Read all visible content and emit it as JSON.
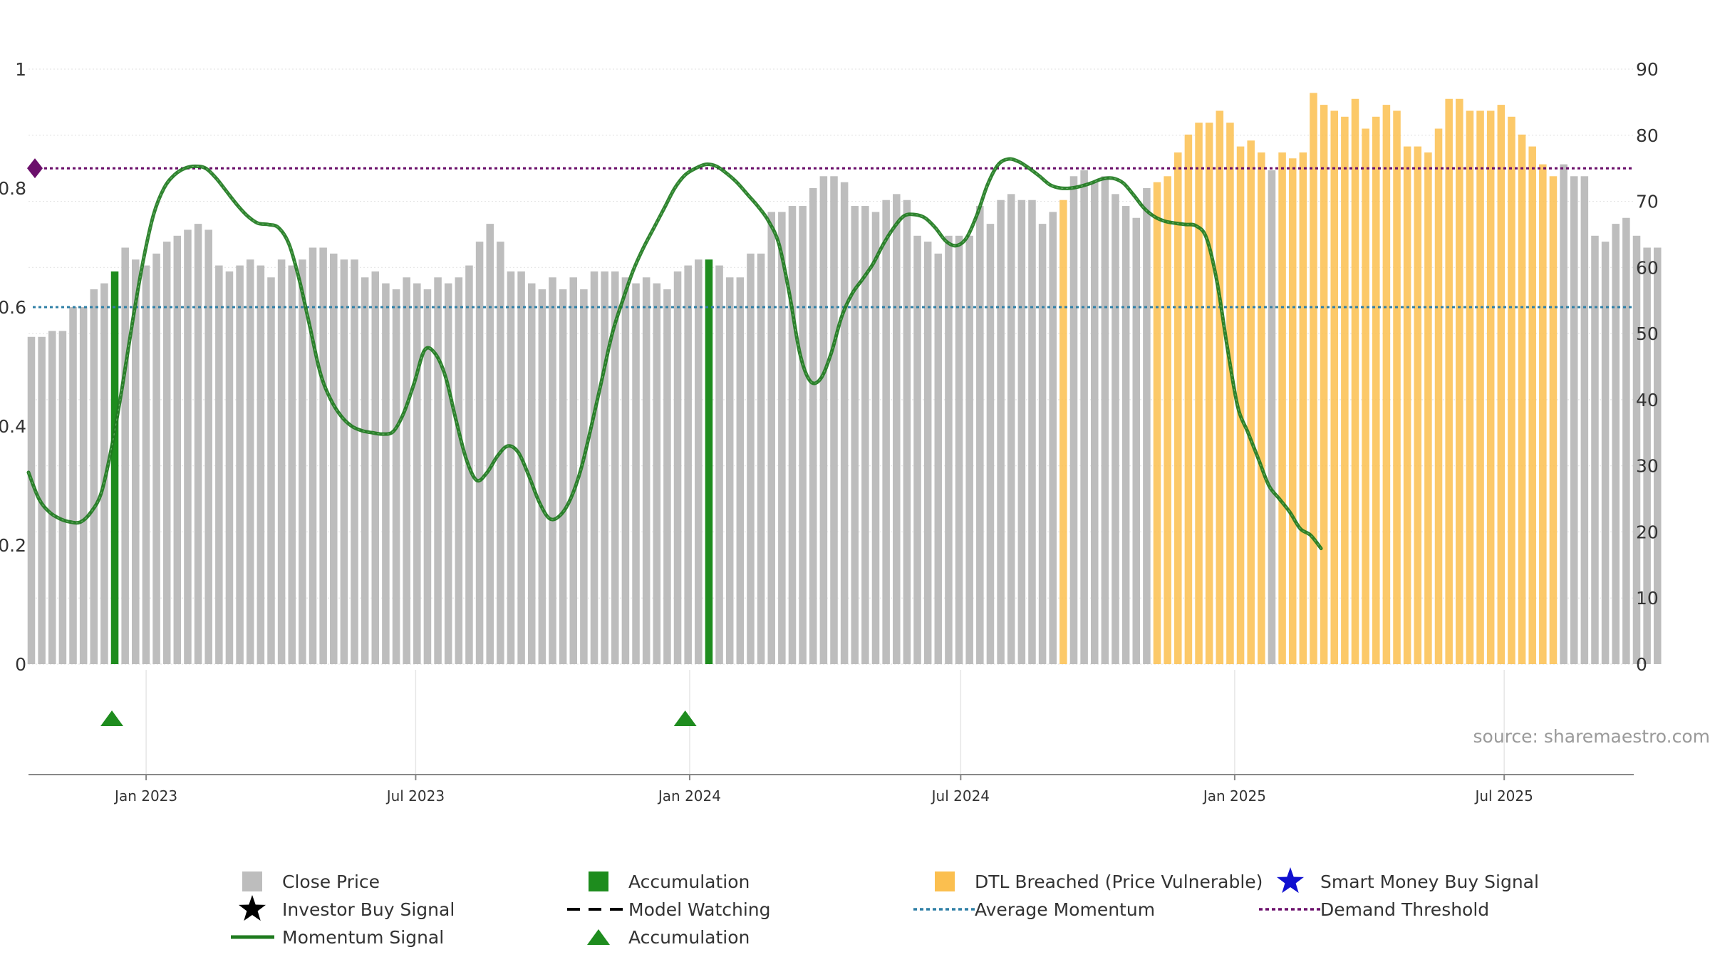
{
  "chart_data": {
    "type": "bar",
    "colors": {
      "close_price": "#bdbdbd",
      "accumulation": "#1e8c1e",
      "dtl_breached": "#fbbf4f",
      "momentum": "#1e7a1e",
      "average_momentum": "#2f7fa6",
      "demand_threshold": "#6b0f6b",
      "smart_money_star": "#1010d0",
      "investor_star": "#000000",
      "model_watching": "#000000",
      "grid": "#e6e6e6",
      "axis": "#888888"
    },
    "left_axis": {
      "ylim": [
        0,
        1
      ],
      "ticks": [
        "0",
        "0.2",
        "0.4",
        "0.6",
        "0.8",
        "1"
      ]
    },
    "right_axis": {
      "ylim": [
        0,
        90
      ],
      "ticks": [
        "0",
        "10",
        "20",
        "30",
        "40",
        "50",
        "60",
        "70",
        "80",
        "90"
      ]
    },
    "x_axis": {
      "start": "2022-10-14",
      "end": "2025-09-26",
      "ticks": [
        {
          "date": "2023-01-01",
          "label": "Jan 2023"
        },
        {
          "date": "2023-07-01",
          "label": "Jul 2023"
        },
        {
          "date": "2024-01-01",
          "label": "Jan 2024"
        },
        {
          "date": "2024-07-01",
          "label": "Jul 2024"
        },
        {
          "date": "2025-01-01",
          "label": "Jan 2025"
        },
        {
          "date": "2025-07-01",
          "label": "Jul 2025"
        }
      ]
    },
    "weekly_bars": {
      "start": "2022-10-14",
      "interval_days": 7,
      "values": [
        0.55,
        0.55,
        0.56,
        0.56,
        0.6,
        0.6,
        0.63,
        0.64,
        0.66,
        0.7,
        0.68,
        0.67,
        0.69,
        0.71,
        0.72,
        0.73,
        0.74,
        0.73,
        0.67,
        0.66,
        0.67,
        0.68,
        0.67,
        0.65,
        0.68,
        0.67,
        0.68,
        0.7,
        0.7,
        0.69,
        0.68,
        0.68,
        0.65,
        0.66,
        0.64,
        0.63,
        0.65,
        0.64,
        0.63,
        0.65,
        0.64,
        0.65,
        0.67,
        0.71,
        0.74,
        0.71,
        0.66,
        0.66,
        0.64,
        0.63,
        0.65,
        0.63,
        0.65,
        0.63,
        0.66,
        0.66,
        0.66,
        0.65,
        0.64,
        0.65,
        0.64,
        0.63,
        0.66,
        0.67,
        0.68,
        0.68,
        0.67,
        0.65,
        0.65,
        0.69,
        0.69,
        0.76,
        0.76,
        0.77,
        0.77,
        0.8,
        0.82,
        0.82,
        0.81,
        0.77,
        0.77,
        0.76,
        0.78,
        0.79,
        0.78,
        0.72,
        0.71,
        0.69,
        0.72,
        0.72,
        0.72,
        0.77,
        0.74,
        0.78,
        0.79,
        0.78,
        0.78,
        0.74,
        0.76,
        0.78,
        0.82,
        0.83,
        0.81,
        0.82,
        0.79,
        0.77,
        0.75,
        0.8,
        0.81,
        0.82,
        0.86,
        0.89,
        0.91,
        0.91,
        0.93,
        0.91,
        0.87,
        0.88,
        0.86,
        0.83,
        0.86,
        0.85,
        0.86,
        0.96,
        0.94,
        0.93,
        0.92,
        0.95,
        0.9,
        0.92,
        0.94,
        0.93,
        0.87,
        0.87,
        0.86,
        0.9,
        0.95,
        0.95,
        0.93,
        0.93,
        0.93,
        0.94,
        0.92,
        0.89,
        0.87,
        0.84,
        0.82,
        0.84,
        0.82,
        0.82,
        0.72,
        0.71,
        0.74,
        0.75,
        0.72,
        0.7,
        0.7
      ],
      "accumulation_weeks": [
        8,
        65
      ],
      "dtl_breached_ranges": [
        [
          99,
          99
        ],
        [
          108,
          118
        ],
        [
          120,
          146
        ]
      ]
    },
    "momentum_signal": {
      "axis": "right",
      "points": [
        [
          "2022-10-14",
          29
        ],
        [
          "2022-10-21",
          25
        ],
        [
          "2022-10-28",
          23
        ],
        [
          "2022-11-04",
          22
        ],
        [
          "2022-11-11",
          21.5
        ],
        [
          "2022-11-18",
          21.5
        ],
        [
          "2022-11-25",
          23
        ],
        [
          "2022-12-02",
          26
        ],
        [
          "2022-12-09",
          33
        ],
        [
          "2022-12-16",
          42
        ],
        [
          "2022-12-23",
          52
        ],
        [
          "2022-12-30",
          61
        ],
        [
          "2023-01-06",
          68
        ],
        [
          "2023-01-13",
          72
        ],
        [
          "2023-01-20",
          74
        ],
        [
          "2023-01-27",
          75
        ],
        [
          "2023-02-03",
          75.3
        ],
        [
          "2023-02-10",
          75
        ],
        [
          "2023-02-17",
          73.5
        ],
        [
          "2023-02-24",
          71.5
        ],
        [
          "2023-03-03",
          69.5
        ],
        [
          "2023-03-10",
          67.8
        ],
        [
          "2023-03-17",
          66.7
        ],
        [
          "2023-03-24",
          66.5
        ],
        [
          "2023-03-31",
          66
        ],
        [
          "2023-04-07",
          63.5
        ],
        [
          "2023-04-14",
          58
        ],
        [
          "2023-04-21",
          51
        ],
        [
          "2023-04-28",
          44
        ],
        [
          "2023-05-05",
          40
        ],
        [
          "2023-05-12",
          37.5
        ],
        [
          "2023-05-19",
          36
        ],
        [
          "2023-05-26",
          35.3
        ],
        [
          "2023-06-02",
          35
        ],
        [
          "2023-06-09",
          34.8
        ],
        [
          "2023-06-16",
          35.2
        ],
        [
          "2023-06-23",
          38
        ],
        [
          "2023-06-30",
          42.5
        ],
        [
          "2023-07-07",
          47.5
        ],
        [
          "2023-07-14",
          47
        ],
        [
          "2023-07-21",
          43.5
        ],
        [
          "2023-07-28",
          37
        ],
        [
          "2023-08-04",
          31
        ],
        [
          "2023-08-11",
          27.8
        ],
        [
          "2023-08-18",
          29
        ],
        [
          "2023-08-25",
          31.5
        ],
        [
          "2023-09-01",
          33
        ],
        [
          "2023-09-08",
          32
        ],
        [
          "2023-09-15",
          28.5
        ],
        [
          "2023-09-22",
          24.5
        ],
        [
          "2023-09-29",
          22
        ],
        [
          "2023-10-06",
          22.5
        ],
        [
          "2023-10-13",
          25
        ],
        [
          "2023-10-20",
          29.5
        ],
        [
          "2023-10-27",
          36
        ],
        [
          "2023-11-03",
          43
        ],
        [
          "2023-11-10",
          50
        ],
        [
          "2023-11-17",
          55
        ],
        [
          "2023-11-24",
          59.5
        ],
        [
          "2023-12-01",
          63
        ],
        [
          "2023-12-08",
          66
        ],
        [
          "2023-12-15",
          69
        ],
        [
          "2023-12-22",
          72
        ],
        [
          "2023-12-29",
          74
        ],
        [
          "2024-01-05",
          75
        ],
        [
          "2024-01-12",
          75.6
        ],
        [
          "2024-01-19",
          75.3
        ],
        [
          "2024-01-26",
          74.2
        ],
        [
          "2024-02-02",
          72.8
        ],
        [
          "2024-02-09",
          71
        ],
        [
          "2024-02-16",
          69.2
        ],
        [
          "2024-02-23",
          67
        ],
        [
          "2024-03-01",
          63.5
        ],
        [
          "2024-03-08",
          56
        ],
        [
          "2024-03-15",
          47
        ],
        [
          "2024-03-22",
          42.8
        ],
        [
          "2024-03-29",
          43.2
        ],
        [
          "2024-04-05",
          47
        ],
        [
          "2024-04-12",
          52.5
        ],
        [
          "2024-04-19",
          56
        ],
        [
          "2024-04-26",
          58.2
        ],
        [
          "2024-05-03",
          60.5
        ],
        [
          "2024-05-10",
          63.5
        ],
        [
          "2024-05-17",
          66
        ],
        [
          "2024-05-24",
          67.8
        ],
        [
          "2024-05-31",
          68
        ],
        [
          "2024-06-07",
          67.5
        ],
        [
          "2024-06-14",
          66
        ],
        [
          "2024-06-21",
          64
        ],
        [
          "2024-06-28",
          63.3
        ],
        [
          "2024-07-05",
          64.5
        ],
        [
          "2024-07-12",
          68
        ],
        [
          "2024-07-19",
          72.5
        ],
        [
          "2024-07-26",
          75.5
        ],
        [
          "2024-08-02",
          76.4
        ],
        [
          "2024-08-09",
          76
        ],
        [
          "2024-08-16",
          75
        ],
        [
          "2024-08-23",
          73.8
        ],
        [
          "2024-08-30",
          72.5
        ],
        [
          "2024-09-06",
          72
        ],
        [
          "2024-09-13",
          72
        ],
        [
          "2024-09-20",
          72.3
        ],
        [
          "2024-09-27",
          72.8
        ],
        [
          "2024-10-04",
          73.4
        ],
        [
          "2024-10-11",
          73.5
        ],
        [
          "2024-10-18",
          72.8
        ],
        [
          "2024-10-25",
          71
        ],
        [
          "2024-11-01",
          69
        ],
        [
          "2024-11-08",
          67.7
        ],
        [
          "2024-11-15",
          67
        ],
        [
          "2024-11-22",
          66.7
        ],
        [
          "2024-11-29",
          66.5
        ],
        [
          "2024-12-06",
          66.3
        ],
        [
          "2024-12-13",
          64.5
        ],
        [
          "2024-12-20",
          58
        ],
        [
          "2024-12-27",
          48
        ],
        [
          "2025-01-03",
          39
        ],
        [
          "2025-01-10",
          35
        ],
        [
          "2025-01-17",
          31
        ],
        [
          "2025-01-24",
          27
        ],
        [
          "2025-01-31",
          25
        ],
        [
          "2025-02-07",
          23
        ],
        [
          "2025-02-14",
          20.5
        ],
        [
          "2025-02-21",
          19.5
        ],
        [
          "2025-02-28",
          17.5
        ]
      ]
    },
    "thresholds": {
      "average_momentum": 54,
      "demand_threshold": 75
    },
    "accumulation_markers": [
      "2022-12-09",
      "2023-12-29"
    ],
    "source": "source: sharemaestro.com",
    "legend": [
      {
        "label": "Close Price",
        "kind": "square",
        "color": "#bdbdbd"
      },
      {
        "label": "Accumulation",
        "kind": "square",
        "color": "#1e8c1e"
      },
      {
        "label": "DTL Breached (Price Vulnerable)",
        "kind": "square",
        "color": "#fbbf4f"
      },
      {
        "label": "Smart Money Buy Signal",
        "kind": "star",
        "color": "#1010d0"
      },
      {
        "label": "Investor Buy Signal",
        "kind": "star",
        "color": "#000000"
      },
      {
        "label": "Model Watching",
        "kind": "dash",
        "color": "#000000"
      },
      {
        "label": "Average Momentum",
        "kind": "dot",
        "color": "#2f7fa6"
      },
      {
        "label": "Demand Threshold",
        "kind": "dot",
        "color": "#6b0f6b"
      },
      {
        "label": "Momentum Signal",
        "kind": "line",
        "color": "#1e7a1e"
      },
      {
        "label": "Accumulation",
        "kind": "triangle",
        "color": "#1e8c1e"
      }
    ]
  }
}
